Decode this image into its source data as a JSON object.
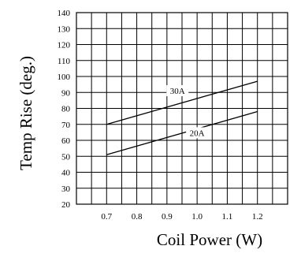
{
  "chart_data": {
    "type": "line",
    "title": "",
    "xlabel": "Coil Power (W)",
    "ylabel": "Temp Rise (deg.)",
    "xlim": [
      0.6,
      1.3
    ],
    "ylim": [
      20,
      140
    ],
    "x_ticks": [
      "0.7",
      "0.8",
      "0.9",
      "1.0",
      "1.1",
      "1.2"
    ],
    "y_ticks": [
      "20",
      "30",
      "40",
      "50",
      "60",
      "70",
      "80",
      "90",
      "100",
      "110",
      "120",
      "130",
      "140"
    ],
    "grid": true,
    "series": [
      {
        "name": "30A",
        "x": [
          0.7,
          1.2
        ],
        "y": [
          70,
          97
        ]
      },
      {
        "name": "20A",
        "x": [
          0.7,
          1.2
        ],
        "y": [
          51,
          78
        ]
      }
    ]
  }
}
